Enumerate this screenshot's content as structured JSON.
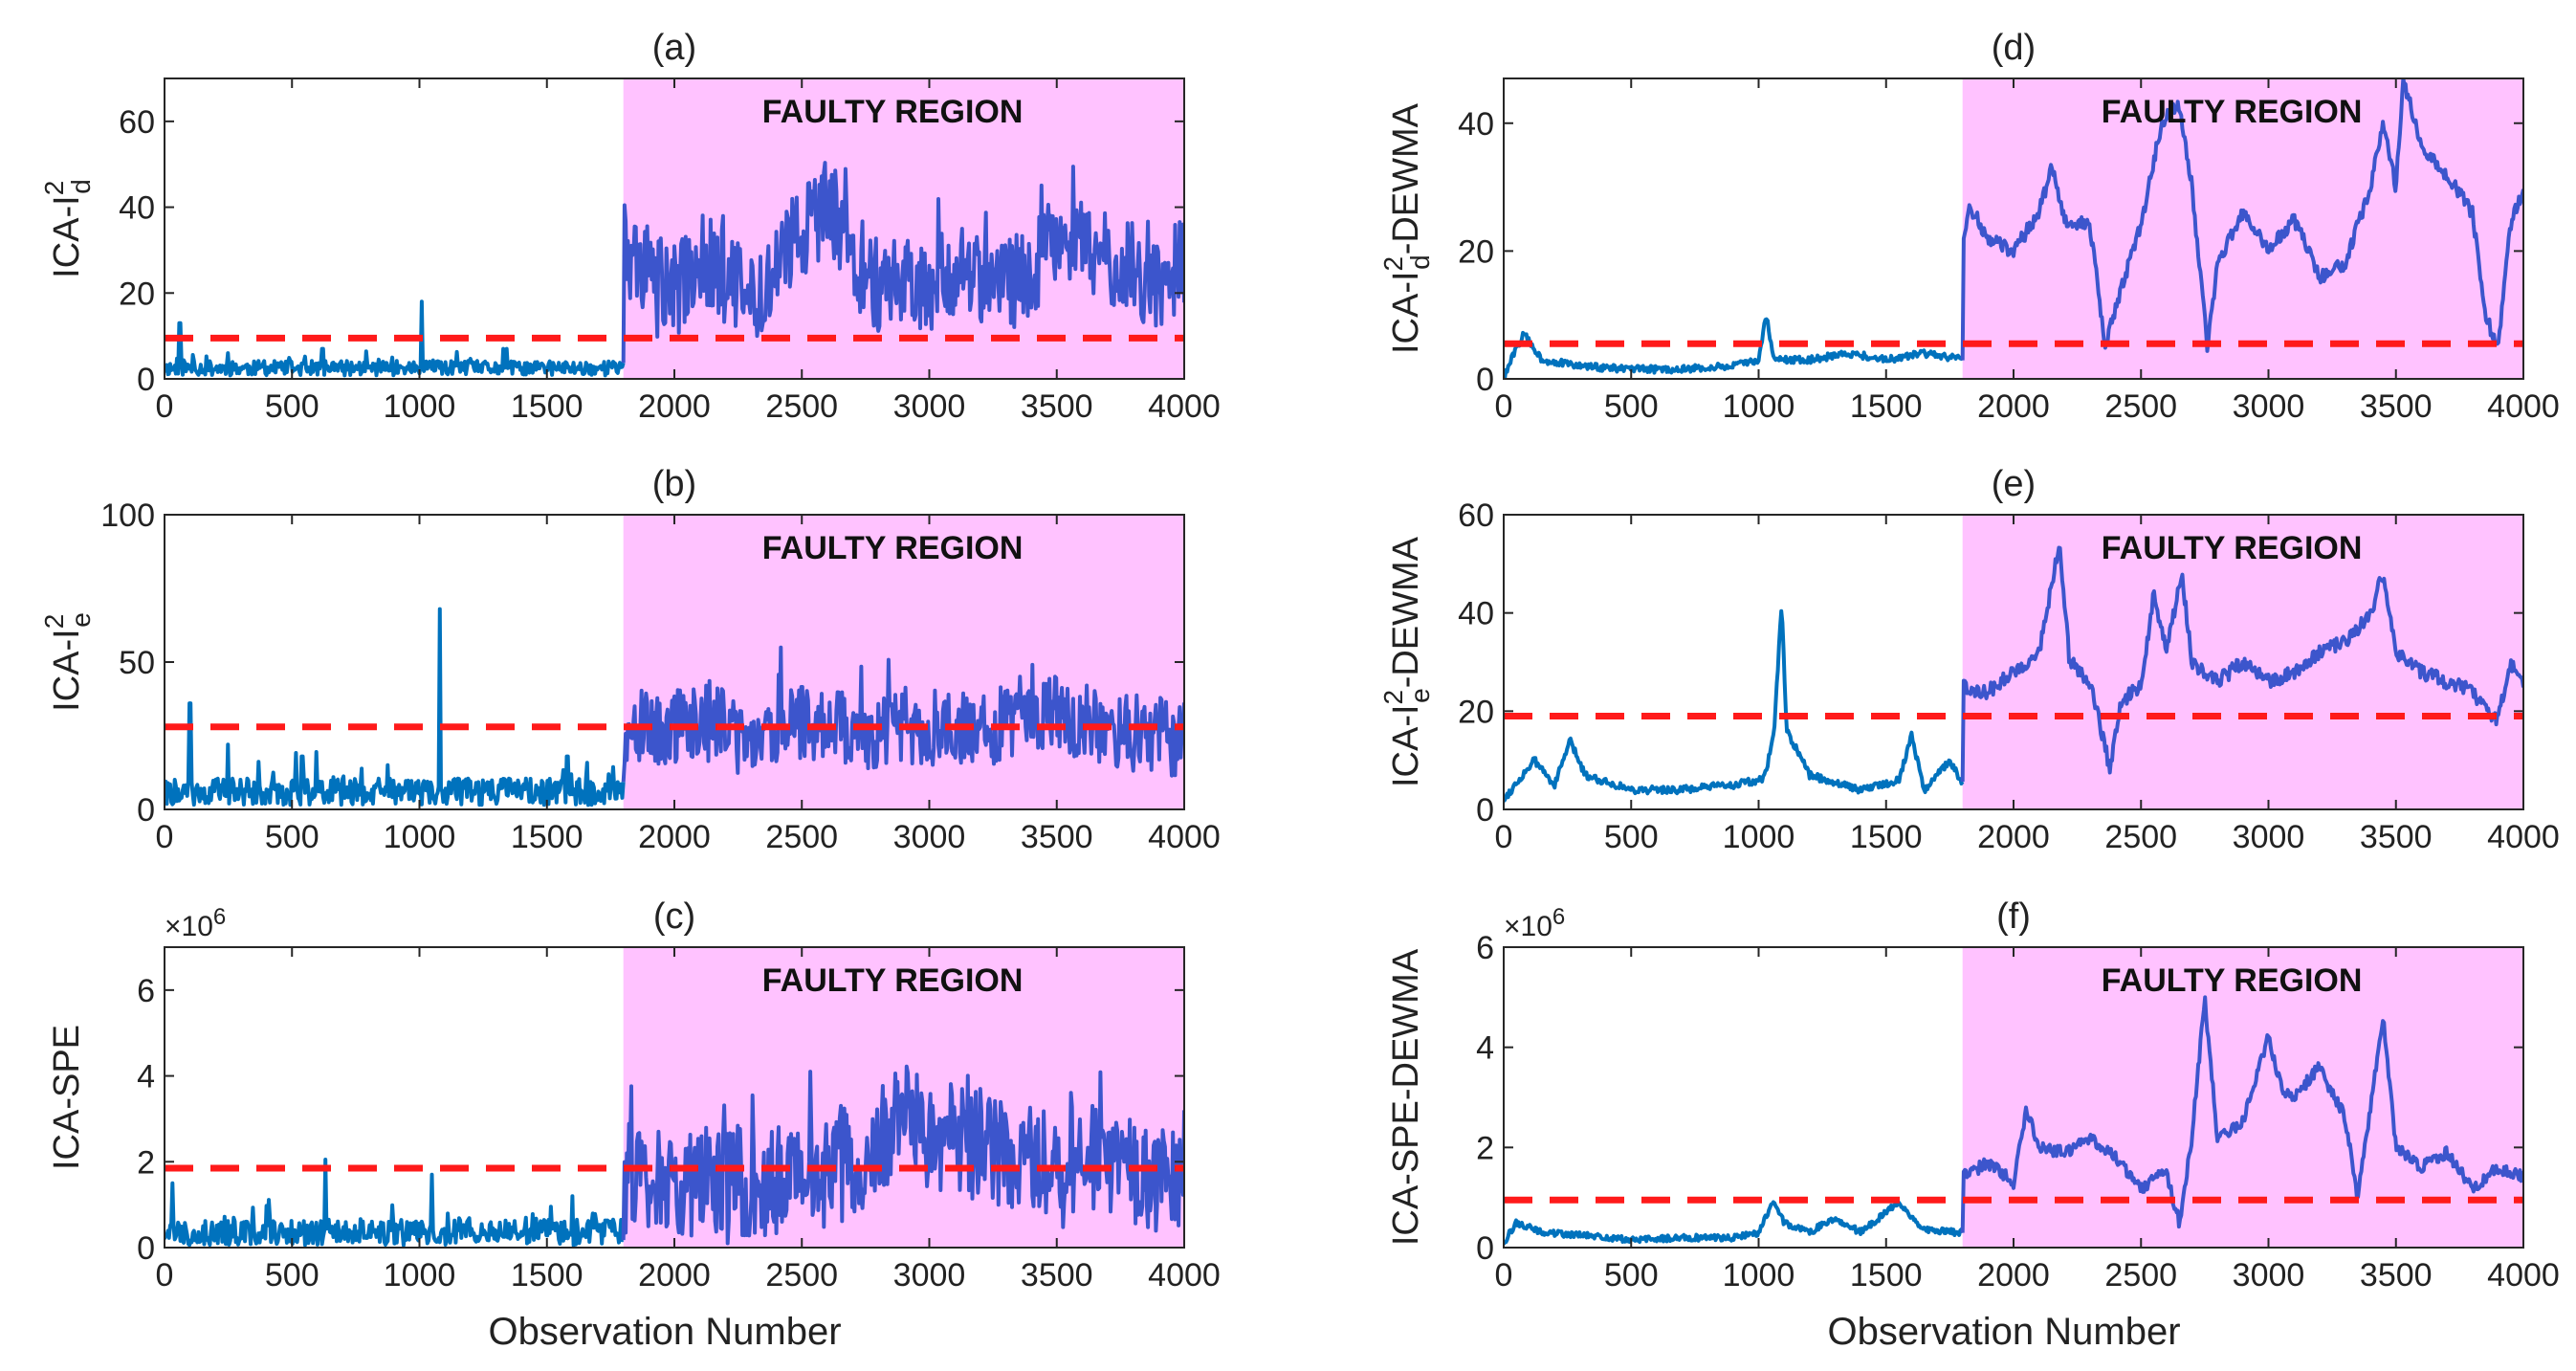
{
  "figure": {
    "xlabel": "Observation Number",
    "region_label": "FAULTY REGION",
    "colors": {
      "normal_line": "#0072BD",
      "fault_line": "#3C55CC",
      "threshold": "#FF1A1A",
      "fault_bg": "#FFC2FF"
    }
  },
  "chart_data": [
    {
      "id": "a",
      "type": "line",
      "title": "(a)",
      "ylabel_main": "ICA-I",
      "ylabel_sup": "2",
      "ylabel_sub": "d",
      "ylabel_suffix": "",
      "y_multiplier": "",
      "xlim": [
        0,
        4000
      ],
      "ylim": [
        0,
        70
      ],
      "xticks": [
        0,
        500,
        1000,
        1500,
        2000,
        2500,
        3000,
        3500,
        4000
      ],
      "yticks": [
        0,
        20,
        40,
        60
      ],
      "threshold": 9.5,
      "fault_start": 1800,
      "normal_base": 2.5,
      "normal_amp": 1.7,
      "spikes": [
        [
          60,
          13
        ],
        [
          250,
          6
        ],
        [
          620,
          7
        ],
        [
          1010,
          18
        ],
        [
          1330,
          7
        ]
      ],
      "fault_series": [
        [
          1800,
          30
        ],
        [
          1900,
          25
        ],
        [
          2000,
          20
        ],
        [
          2100,
          28
        ],
        [
          2200,
          24
        ],
        [
          2300,
          18
        ],
        [
          2400,
          26
        ],
        [
          2500,
          35
        ],
        [
          2600,
          40
        ],
        [
          2700,
          28
        ],
        [
          2800,
          22
        ],
        [
          2900,
          24
        ],
        [
          3000,
          22
        ],
        [
          3100,
          25
        ],
        [
          3200,
          20
        ],
        [
          3300,
          22
        ],
        [
          3400,
          24
        ],
        [
          3500,
          35
        ],
        [
          3600,
          30
        ],
        [
          3700,
          28
        ],
        [
          3800,
          26
        ],
        [
          3900,
          20
        ],
        [
          4000,
          28
        ]
      ],
      "fault_amp": 11,
      "seed": 11
    },
    {
      "id": "b",
      "type": "line",
      "title": "(b)",
      "ylabel_main": "ICA-I",
      "ylabel_sup": "2",
      "ylabel_sub": "e",
      "ylabel_suffix": "",
      "y_multiplier": "",
      "xlim": [
        0,
        4000
      ],
      "ylim": [
        0,
        100
      ],
      "xticks": [
        0,
        500,
        1000,
        1500,
        2000,
        2500,
        3000,
        3500,
        4000
      ],
      "yticks": [
        0,
        50,
        100
      ],
      "threshold": 28,
      "fault_start": 1800,
      "normal_base": 6,
      "normal_amp": 4.5,
      "spikes": [
        [
          100,
          36
        ],
        [
          250,
          22
        ],
        [
          540,
          18
        ],
        [
          1080,
          68
        ],
        [
          1580,
          18
        ]
      ],
      "fault_series": [
        [
          1800,
          28
        ],
        [
          2000,
          28
        ],
        [
          2200,
          30
        ],
        [
          2300,
          20
        ],
        [
          2400,
          28
        ],
        [
          2600,
          30
        ],
        [
          2800,
          26
        ],
        [
          3000,
          28
        ],
        [
          3200,
          26
        ],
        [
          3400,
          34
        ],
        [
          3600,
          30
        ],
        [
          3800,
          26
        ],
        [
          4000,
          24
        ]
      ],
      "fault_amp": 13,
      "seed": 22
    },
    {
      "id": "c",
      "type": "line",
      "title": "(c)",
      "ylabel_main": "ICA-SPE",
      "ylabel_sup": "",
      "ylabel_sub": "",
      "ylabel_suffix": "",
      "y_multiplier": "×10",
      "y_multiplier_exp": "6",
      "xlim": [
        0,
        4000
      ],
      "ylim": [
        0,
        7
      ],
      "xticks": [
        0,
        500,
        1000,
        1500,
        2000,
        2500,
        3000,
        3500,
        4000
      ],
      "yticks": [
        0,
        2,
        4,
        6
      ],
      "threshold": 1.85,
      "fault_start": 1800,
      "normal_base": 0.35,
      "normal_amp": 0.3,
      "spikes": [
        [
          30,
          1.5
        ],
        [
          630,
          2.05
        ],
        [
          1050,
          1.7
        ],
        [
          1600,
          1.2
        ]
      ],
      "fault_series": [
        [
          1800,
          1.6
        ],
        [
          2000,
          1.5
        ],
        [
          2200,
          1.6
        ],
        [
          2400,
          1.5
        ],
        [
          2600,
          1.8
        ],
        [
          2800,
          2.4
        ],
        [
          2900,
          3.2
        ],
        [
          3000,
          2.6
        ],
        [
          3200,
          2.4
        ],
        [
          3400,
          2.0
        ],
        [
          3600,
          2.2
        ],
        [
          3800,
          1.7
        ],
        [
          4000,
          1.4
        ]
      ],
      "fault_amp": 1.3,
      "seed": 33
    },
    {
      "id": "d",
      "type": "line",
      "title": "(d)",
      "ylabel_main": "ICA-I",
      "ylabel_sup": "2",
      "ylabel_sub": "d",
      "ylabel_suffix": "-DEWMA",
      "y_multiplier": "",
      "xlim": [
        0,
        4000
      ],
      "ylim": [
        0,
        47
      ],
      "xticks": [
        0,
        500,
        1000,
        1500,
        2000,
        2500,
        3000,
        3500,
        4000
      ],
      "yticks": [
        0,
        20,
        40
      ],
      "threshold": 5.5,
      "fault_start": 1800,
      "normal_series": [
        [
          0,
          0
        ],
        [
          40,
          4
        ],
        [
          80,
          7
        ],
        [
          150,
          3
        ],
        [
          300,
          2
        ],
        [
          500,
          1.5
        ],
        [
          700,
          1.5
        ],
        [
          900,
          2
        ],
        [
          1000,
          3
        ],
        [
          1030,
          10
        ],
        [
          1060,
          3
        ],
        [
          1200,
          3
        ],
        [
          1350,
          4
        ],
        [
          1500,
          3
        ],
        [
          1650,
          4
        ],
        [
          1800,
          3
        ]
      ],
      "fault_series": [
        [
          1800,
          20
        ],
        [
          1830,
          27
        ],
        [
          1900,
          22
        ],
        [
          2000,
          20
        ],
        [
          2100,
          26
        ],
        [
          2150,
          33
        ],
        [
          2200,
          25
        ],
        [
          2300,
          24
        ],
        [
          2360,
          5
        ],
        [
          2420,
          14
        ],
        [
          2500,
          24
        ],
        [
          2580,
          40
        ],
        [
          2650,
          43
        ],
        [
          2700,
          30
        ],
        [
          2760,
          5
        ],
        [
          2800,
          18
        ],
        [
          2900,
          26
        ],
        [
          3000,
          20
        ],
        [
          3100,
          25
        ],
        [
          3200,
          16
        ],
        [
          3300,
          18
        ],
        [
          3400,
          30
        ],
        [
          3450,
          40
        ],
        [
          3500,
          30
        ],
        [
          3530,
          47
        ],
        [
          3600,
          36
        ],
        [
          3700,
          32
        ],
        [
          3800,
          26
        ],
        [
          3850,
          10
        ],
        [
          3900,
          5
        ],
        [
          3950,
          24
        ],
        [
          4000,
          30
        ]
      ],
      "noise_amp": 2.2,
      "seed": 44
    },
    {
      "id": "e",
      "type": "line",
      "title": "(e)",
      "ylabel_main": "ICA-I",
      "ylabel_sup": "2",
      "ylabel_sub": "e",
      "ylabel_suffix": "-DEWMA",
      "y_multiplier": "",
      "xlim": [
        0,
        4000
      ],
      "ylim": [
        0,
        60
      ],
      "xticks": [
        0,
        500,
        1000,
        1500,
        2000,
        2500,
        3000,
        3500,
        4000
      ],
      "yticks": [
        0,
        20,
        40,
        60
      ],
      "threshold": 19,
      "fault_start": 1800,
      "normal_series": [
        [
          0,
          2
        ],
        [
          60,
          6
        ],
        [
          120,
          10
        ],
        [
          200,
          5
        ],
        [
          260,
          14
        ],
        [
          320,
          7
        ],
        [
          500,
          4
        ],
        [
          700,
          4
        ],
        [
          900,
          5
        ],
        [
          1020,
          6
        ],
        [
          1060,
          15
        ],
        [
          1090,
          42
        ],
        [
          1110,
          16
        ],
        [
          1200,
          7
        ],
        [
          1400,
          4
        ],
        [
          1550,
          6
        ],
        [
          1600,
          15
        ],
        [
          1650,
          4
        ],
        [
          1750,
          10
        ],
        [
          1800,
          5
        ]
      ],
      "fault_series": [
        [
          1800,
          25
        ],
        [
          1900,
          24
        ],
        [
          2000,
          28
        ],
        [
          2100,
          32
        ],
        [
          2180,
          54
        ],
        [
          2220,
          30
        ],
        [
          2300,
          26
        ],
        [
          2380,
          8
        ],
        [
          2420,
          22
        ],
        [
          2500,
          25
        ],
        [
          2550,
          44
        ],
        [
          2600,
          32
        ],
        [
          2660,
          48
        ],
        [
          2700,
          30
        ],
        [
          2800,
          26
        ],
        [
          2900,
          30
        ],
        [
          3000,
          26
        ],
        [
          3100,
          28
        ],
        [
          3200,
          32
        ],
        [
          3300,
          34
        ],
        [
          3400,
          40
        ],
        [
          3450,
          48
        ],
        [
          3500,
          32
        ],
        [
          3600,
          28
        ],
        [
          3700,
          26
        ],
        [
          3800,
          24
        ],
        [
          3900,
          18
        ],
        [
          3950,
          30
        ],
        [
          4000,
          26
        ]
      ],
      "noise_amp": 3,
      "seed": 55
    },
    {
      "id": "f",
      "type": "line",
      "title": "(f)",
      "ylabel_main": "ICA-SPE-DEWMA",
      "ylabel_sup": "",
      "ylabel_sub": "",
      "ylabel_suffix": "",
      "y_multiplier": "×10",
      "y_multiplier_exp": "6",
      "xlim": [
        0,
        4000
      ],
      "ylim": [
        0,
        6
      ],
      "xticks": [
        0,
        500,
        1000,
        1500,
        2000,
        2500,
        3000,
        3500,
        4000
      ],
      "yticks": [
        0,
        2,
        4,
        6
      ],
      "threshold": 0.95,
      "fault_start": 1800,
      "normal_series": [
        [
          0,
          0.1
        ],
        [
          50,
          0.5
        ],
        [
          150,
          0.3
        ],
        [
          300,
          0.25
        ],
        [
          500,
          0.15
        ],
        [
          700,
          0.2
        ],
        [
          900,
          0.2
        ],
        [
          1000,
          0.3
        ],
        [
          1060,
          0.95
        ],
        [
          1100,
          0.5
        ],
        [
          1200,
          0.3
        ],
        [
          1300,
          0.6
        ],
        [
          1400,
          0.3
        ],
        [
          1550,
          0.9
        ],
        [
          1650,
          0.35
        ],
        [
          1800,
          0.3
        ]
      ],
      "fault_series": [
        [
          1800,
          1.4
        ],
        [
          1900,
          1.7
        ],
        [
          2000,
          1.3
        ],
        [
          2050,
          2.8
        ],
        [
          2100,
          2.0
        ],
        [
          2200,
          1.9
        ],
        [
          2300,
          2.2
        ],
        [
          2400,
          1.8
        ],
        [
          2500,
          1.2
        ],
        [
          2600,
          1.5
        ],
        [
          2650,
          0.5
        ],
        [
          2700,
          2.2
        ],
        [
          2750,
          5.0
        ],
        [
          2800,
          2.2
        ],
        [
          2900,
          2.5
        ],
        [
          3000,
          4.2
        ],
        [
          3050,
          3.2
        ],
        [
          3100,
          3.0
        ],
        [
          3200,
          3.6
        ],
        [
          3300,
          2.6
        ],
        [
          3350,
          1.0
        ],
        [
          3450,
          4.6
        ],
        [
          3500,
          2.0
        ],
        [
          3600,
          1.6
        ],
        [
          3700,
          1.9
        ],
        [
          3800,
          1.2
        ],
        [
          3900,
          1.6
        ],
        [
          4000,
          1.4
        ]
      ],
      "noise_amp": 0.25,
      "seed": 66
    }
  ]
}
